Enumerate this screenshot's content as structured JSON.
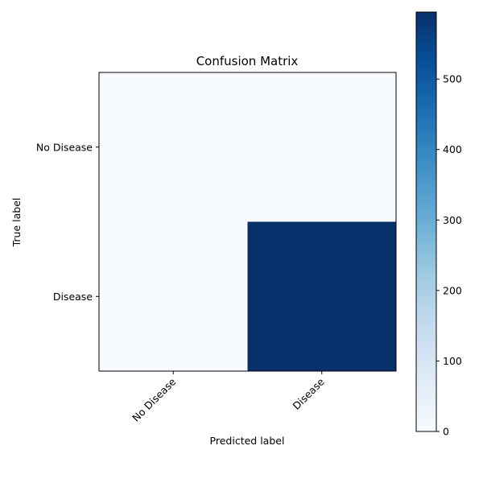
{
  "chart_data": {
    "type": "heatmap",
    "title": "Confusion Matrix",
    "xlabel": "Predicted label",
    "ylabel": "True label",
    "x_categories": [
      "No Disease",
      "Disease"
    ],
    "y_categories": [
      "No Disease",
      "Disease"
    ],
    "values": [
      [
        0,
        0
      ],
      [
        0,
        595
      ]
    ],
    "colormap": "Blues",
    "colorbar": {
      "min": 0,
      "max": 595,
      "ticks": [
        0,
        100,
        200,
        300,
        400,
        500
      ],
      "tick_labels": [
        "0",
        "100",
        "200",
        "300",
        "400",
        "500"
      ],
      "color_low": "#f7fbff",
      "color_high": "#08306b"
    },
    "grid": false
  }
}
